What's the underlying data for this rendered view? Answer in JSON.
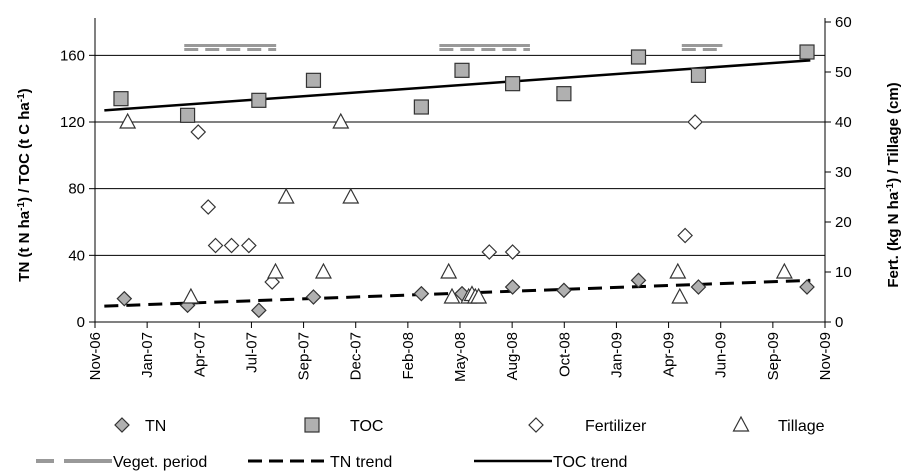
{
  "chart_data": {
    "type": "scatter",
    "ylabel_left": [
      "TN (t N ha",
      "-1",
      ") / TOC (t C ha",
      "-1",
      ")"
    ],
    "ylabel_right": [
      "Fert. (kg N ha",
      "-1",
      ") / Tillage (cm)"
    ],
    "x_ticks": [
      "Nov-06",
      "Jan-07",
      "Apr-07",
      "Jul-07",
      "Sep-07",
      "Dec-07",
      "Feb-08",
      "May-08",
      "Aug-08",
      "Oct-08",
      "Jan-09",
      "Apr-09",
      "Jun-09",
      "Sep-09",
      "Nov-09"
    ],
    "ylim_left": [
      0,
      180
    ],
    "yticks_left": [
      "0",
      "40",
      "80",
      "120",
      "160"
    ],
    "ylim_right": [
      0,
      60
    ],
    "yticks_right": [
      "0",
      "10",
      "20",
      "30",
      "40",
      "50",
      "60"
    ],
    "grid": "horizontal",
    "series": [
      {
        "name": "TN",
        "axis": "left",
        "marker": "filled-diamond",
        "x": [
          "2006-12-15",
          "2007-03-20",
          "2007-07-05",
          "2007-09-25",
          "2008-03-05",
          "2008-05-05",
          "2008-07-20",
          "2008-10-05",
          "2009-01-25",
          "2009-04-25",
          "2009-10-05"
        ],
        "y": [
          14,
          10,
          7,
          15,
          17,
          17,
          21,
          19,
          25,
          21,
          21
        ]
      },
      {
        "name": "TOC",
        "axis": "left",
        "marker": "filled-square",
        "x": [
          "2006-12-10",
          "2007-03-20",
          "2007-07-05",
          "2007-09-25",
          "2008-03-05",
          "2008-05-05",
          "2008-07-20",
          "2008-10-05",
          "2009-01-25",
          "2009-04-25",
          "2009-10-05"
        ],
        "y": [
          134,
          124,
          133,
          145,
          129,
          151,
          143,
          137,
          159,
          148,
          162
        ]
      },
      {
        "name": "Fertilizer",
        "axis": "right",
        "marker": "open-diamond",
        "x": [
          "2007-04-05",
          "2007-04-20",
          "2007-05-01",
          "2007-05-25",
          "2007-06-20",
          "2007-07-25",
          "2008-06-15",
          "2008-07-20",
          "2009-04-05",
          "2009-04-20"
        ],
        "y": [
          38,
          23,
          15.3,
          15.3,
          15.3,
          8,
          14,
          14,
          17.3,
          40
        ]
      },
      {
        "name": "Tillage",
        "axis": "right",
        "marker": "open-triangle",
        "x": [
          "2006-12-20",
          "2007-03-25",
          "2007-07-30",
          "2007-08-15",
          "2007-10-10",
          "2007-11-05",
          "2007-11-20",
          "2008-04-15",
          "2008-04-20",
          "2008-05-15",
          "2008-05-20",
          "2008-05-25",
          "2008-05-30",
          "2009-03-25",
          "2009-03-28",
          "2009-09-01"
        ],
        "y": [
          40,
          5,
          10,
          25,
          10,
          40,
          25,
          10,
          5,
          5,
          5.5,
          5,
          5,
          10,
          5,
          10
        ]
      }
    ],
    "veget_periods": [
      {
        "start": "2007-03-15",
        "end": "2007-07-31"
      },
      {
        "start": "2008-04-01",
        "end": "2008-08-15"
      },
      {
        "start": "2009-03-31",
        "end": "2009-05-31"
      }
    ],
    "trends": [
      {
        "name": "TN trend",
        "style": "dashed",
        "start": {
          "x": "2006-11-15",
          "y": 9.5
        },
        "end": {
          "x": "2009-10-10",
          "y": 25
        }
      },
      {
        "name": "TOC trend",
        "style": "solid",
        "start": {
          "x": "2006-11-15",
          "y": 127
        },
        "end": {
          "x": "2009-10-10",
          "y": 157
        }
      }
    ],
    "legend": {
      "placement": "bottom",
      "row1": [
        "TN",
        "TOC",
        "Fertilizer",
        "Tillage"
      ],
      "row2": [
        "Veget.  period",
        "TN trend",
        "TOC trend"
      ]
    },
    "colors": {
      "grid": "#000000",
      "marker_fill": "#b0b0b0",
      "veget_bar": "#999999",
      "trend": "#000000"
    }
  }
}
